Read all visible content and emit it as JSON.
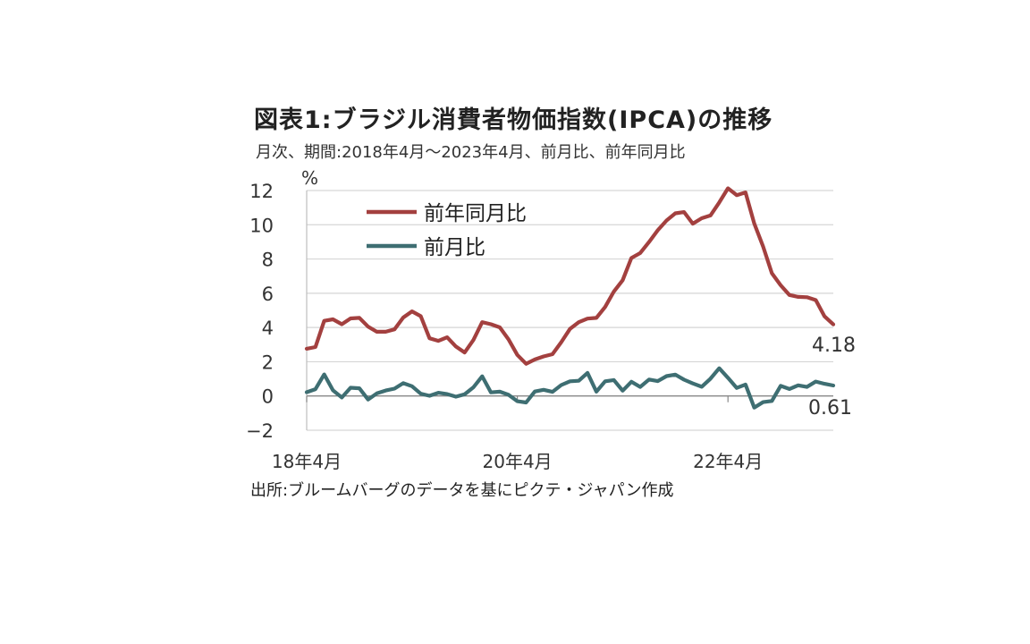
{
  "chart_data": {
    "type": "line",
    "title": "図表1:ブラジル消費者物価指数(IPCA)の推移",
    "subtitle": "月次、期間:2018年4月〜2023年4月、前月比、前年同月比",
    "source": "出所:ブルームバーグのデータを基にピクテ・ジャパン作成",
    "ylabel": "%",
    "ylim": [
      -2,
      12
    ],
    "yticks": [
      "12",
      "10",
      "8",
      "6",
      "4",
      "2",
      "0",
      "−2"
    ],
    "ytick_values": [
      12,
      10,
      8,
      6,
      4,
      2,
      0,
      -2
    ],
    "xtick_labels": [
      "18年4月",
      "20年4月",
      "22年4月"
    ],
    "xtick_indices": [
      0,
      24,
      48
    ],
    "n_points": 61,
    "series": [
      {
        "name": "前年同月比",
        "color": "#a3403f",
        "end_label": "4.18",
        "values": [
          2.76,
          2.86,
          4.39,
          4.48,
          4.19,
          4.53,
          4.56,
          4.05,
          3.75,
          3.75,
          3.89,
          4.58,
          4.94,
          4.66,
          3.37,
          3.22,
          3.43,
          2.89,
          2.54,
          3.27,
          4.31,
          4.19,
          4.01,
          3.3,
          2.4,
          1.88,
          2.13,
          2.31,
          2.44,
          3.14,
          3.92,
          4.31,
          4.52,
          4.56,
          5.2,
          6.1,
          6.76,
          8.06,
          8.35,
          8.99,
          9.68,
          10.25,
          10.67,
          10.74,
          10.06,
          10.38,
          10.54,
          11.3,
          12.13,
          11.73,
          11.89,
          10.07,
          8.73,
          7.17,
          6.47,
          5.9,
          5.79,
          5.77,
          5.6,
          4.65,
          4.18
        ]
      },
      {
        "name": "前月比",
        "color": "#3e6e72",
        "end_label": "0.61",
        "values": [
          0.22,
          0.4,
          1.26,
          0.33,
          -0.09,
          0.48,
          0.45,
          -0.21,
          0.15,
          0.32,
          0.43,
          0.75,
          0.57,
          0.13,
          0.01,
          0.19,
          0.11,
          -0.04,
          0.1,
          0.51,
          1.15,
          0.21,
          0.25,
          0.07,
          -0.31,
          -0.38,
          0.26,
          0.36,
          0.24,
          0.64,
          0.86,
          0.89,
          1.35,
          0.25,
          0.86,
          0.93,
          0.31,
          0.83,
          0.53,
          0.96,
          0.87,
          1.16,
          1.25,
          0.95,
          0.73,
          0.54,
          1.01,
          1.62,
          1.06,
          0.47,
          0.67,
          -0.68,
          -0.36,
          -0.29,
          0.59,
          0.41,
          0.62,
          0.53,
          0.84,
          0.71,
          0.61
        ]
      }
    ]
  }
}
